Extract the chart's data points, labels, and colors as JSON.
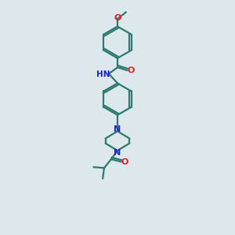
{
  "bg_color": "#dce8ec",
  "bond_color": "#2d7a6e",
  "N_color": "#2020cc",
  "O_color": "#dd2020",
  "line_width": 1.6,
  "font_size": 7.5,
  "figsize": [
    3.0,
    3.0
  ],
  "dpi": 100,
  "xlim": [
    0,
    10
  ],
  "ylim": [
    0,
    14
  ]
}
